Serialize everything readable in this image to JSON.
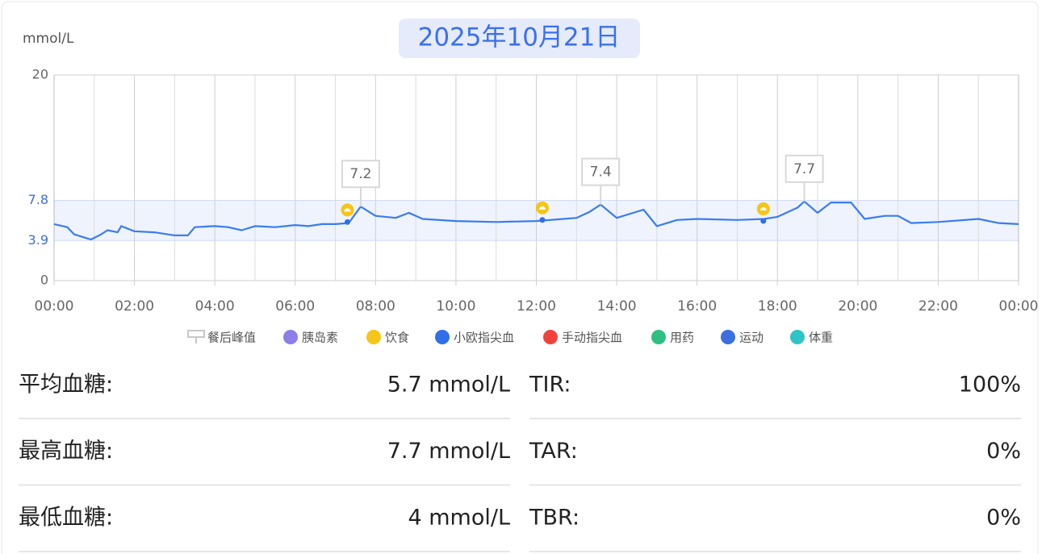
{
  "header": {
    "title": "2025年10月21日"
  },
  "chart_data": {
    "type": "line",
    "y_label": "mmol/L",
    "x": [
      0,
      0.33,
      0.5,
      0.75,
      0.92,
      1.17,
      1.33,
      1.58,
      1.67,
      2,
      2.5,
      3,
      3.33,
      3.5,
      4,
      4.33,
      4.67,
      5,
      5.5,
      6,
      6.33,
      6.67,
      7,
      7.33,
      7.63,
      8,
      8.5,
      8.83,
      9.17,
      10,
      11,
      12,
      12.67,
      13,
      13.33,
      13.6,
      14,
      14.67,
      15,
      15.5,
      16,
      17,
      17.67,
      18,
      18.5,
      18.67,
      19,
      19.33,
      19.83,
      20.17,
      20.67,
      21,
      21.33,
      22,
      23,
      23.5,
      24
    ],
    "values": [
      5.5,
      5.2,
      4.5,
      4.2,
      4.0,
      4.5,
      4.9,
      4.7,
      5.3,
      4.8,
      4.7,
      4.4,
      4.4,
      5.2,
      5.3,
      5.2,
      4.9,
      5.3,
      5.2,
      5.4,
      5.3,
      5.5,
      5.5,
      5.6,
      7.2,
      6.3,
      6.1,
      6.6,
      6.0,
      5.8,
      5.7,
      5.8,
      6.0,
      6.1,
      6.7,
      7.4,
      6.1,
      6.9,
      5.3,
      5.9,
      6.0,
      5.9,
      6.0,
      6.2,
      7.1,
      7.7,
      6.6,
      7.6,
      7.6,
      6.0,
      6.3,
      6.3,
      5.6,
      5.7,
      6.0,
      5.6,
      5.5
    ],
    "color": "#3b7cf0",
    "xlim": [
      0,
      24
    ],
    "xticks": [
      {
        "value": 0,
        "label": "00:00"
      },
      {
        "value": 2,
        "label": "02:00"
      },
      {
        "value": 4,
        "label": "04:00"
      },
      {
        "value": 6,
        "label": "06:00"
      },
      {
        "value": 8,
        "label": "08:00"
      },
      {
        "value": 10,
        "label": "10:00"
      },
      {
        "value": 12,
        "label": "12:00"
      },
      {
        "value": 14,
        "label": "14:00"
      },
      {
        "value": 16,
        "label": "16:00"
      },
      {
        "value": 18,
        "label": "18:00"
      },
      {
        "value": 20,
        "label": "20:00"
      },
      {
        "value": 22,
        "label": "22:00"
      },
      {
        "value": 24,
        "label": "00:00"
      }
    ],
    "minor_xticks": [
      1,
      3,
      5,
      7,
      9,
      11,
      13,
      15,
      17,
      19,
      21,
      23
    ],
    "ylim": [
      0,
      20
    ],
    "yticks": [
      0,
      3.9,
      7.8,
      20
    ],
    "target_range": [
      3.9,
      7.8
    ],
    "grid": true,
    "peaks": {
      "x": [
        7.63,
        13.6,
        18.67
      ],
      "values": [
        7.2,
        7.4,
        7.7
      ]
    },
    "finger_blood": {
      "x": [
        7.3,
        12.15,
        17.65
      ],
      "values": [
        5.7,
        5.9,
        5.8
      ]
    },
    "food": {
      "x": [
        7.3,
        12.15,
        17.65
      ]
    },
    "legend": [
      {
        "name": "餐后峰值",
        "color": "#c8c8c8"
      },
      {
        "name": "胰岛素",
        "color": "#8c7ee8"
      },
      {
        "name": "饮食",
        "color": "#f5c518"
      },
      {
        "name": "小欧指尖血",
        "color": "#2f6fe8"
      },
      {
        "name": "手动指尖血",
        "color": "#f0423c"
      },
      {
        "name": "用药",
        "color": "#2fbf83"
      },
      {
        "name": "运动",
        "color": "#3b6fe0"
      },
      {
        "name": "体重",
        "color": "#2ec4c4"
      }
    ]
  },
  "stats": [
    {
      "label": "平均血糖:",
      "value": "5.7 mmol/L"
    },
    {
      "label": "TIR:",
      "value": "100%"
    },
    {
      "label": "最高血糖:",
      "value": "7.7 mmol/L"
    },
    {
      "label": "TAR:",
      "value": "0%"
    },
    {
      "label": "最低血糖:",
      "value": "4 mmol/L"
    },
    {
      "label": "TBR:",
      "value": "0%"
    }
  ]
}
